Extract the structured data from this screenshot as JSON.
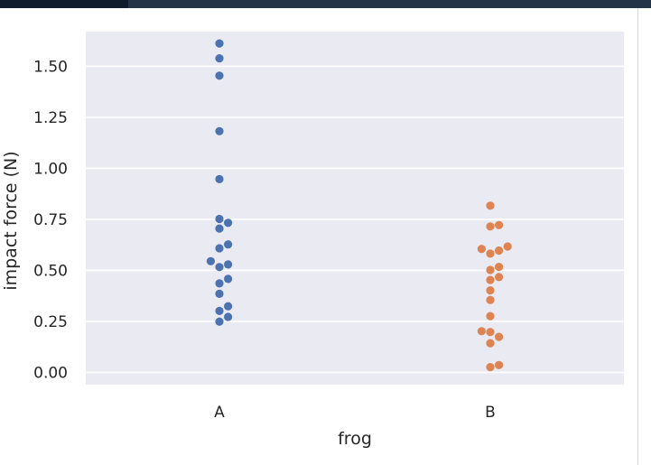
{
  "chart_data": {
    "type": "scatter",
    "subtype": "swarm",
    "xlabel": "frog",
    "ylabel": "impact force (N)",
    "categories": [
      "A",
      "B"
    ],
    "ylim": [
      -0.06,
      1.67
    ],
    "yticks": [
      0.0,
      0.25,
      0.5,
      0.75,
      1.0,
      1.25,
      1.5
    ],
    "ytick_labels": [
      "0.00",
      "0.25",
      "0.50",
      "0.75",
      "1.00",
      "1.25",
      "1.50"
    ],
    "grid": true,
    "background": "#eaeaf2",
    "series": [
      {
        "category": "A",
        "color": "#4c72b0",
        "values": [
          1.612,
          1.539,
          1.454,
          1.182,
          0.947,
          0.752,
          0.733,
          0.705,
          0.627,
          0.608,
          0.545,
          0.529,
          0.516,
          0.458,
          0.436,
          0.385,
          0.324,
          0.301,
          0.272,
          0.249
        ]
      },
      {
        "category": "B",
        "color": "#dd8452",
        "values": [
          0.817,
          0.722,
          0.715,
          0.617,
          0.605,
          0.597,
          0.582,
          0.517,
          0.502,
          0.467,
          0.453,
          0.402,
          0.355,
          0.276,
          0.202,
          0.198,
          0.174,
          0.143,
          0.036,
          0.026
        ]
      }
    ]
  }
}
